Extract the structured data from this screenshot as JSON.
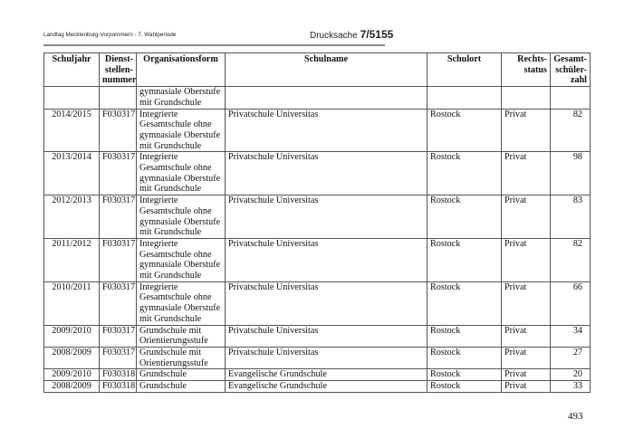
{
  "header": {
    "left": "Landtag Mecklenburg-Vorpommern - 7. Wahlperiode",
    "drucksache_label": "Drucksache",
    "drucksache_number": "7/5155"
  },
  "table": {
    "columns": [
      [
        "Schuljahr"
      ],
      [
        "Dienst-",
        "stellen-",
        "nummer"
      ],
      [
        "Organisationsform"
      ],
      [
        "Schulname"
      ],
      [
        "Schulort"
      ],
      [
        "Rechts-",
        "status"
      ],
      [
        "Gesamt-",
        "schüler-",
        "zahl"
      ]
    ],
    "rows": [
      {
        "schuljahr": "",
        "nummer": "",
        "form": [
          "gymnasiale Oberstufe",
          "mit Grundschule"
        ],
        "name": "",
        "ort": "",
        "status": "",
        "zahl": ""
      },
      {
        "schuljahr": "2014/2015",
        "nummer": "F030317",
        "form": [
          "Integrierte",
          "Gesamtschule ohne",
          "gymnasiale Oberstufe",
          "mit Grundschule"
        ],
        "name": "Privatschule Universitas",
        "ort": "Rostock",
        "status": "Privat",
        "zahl": "82"
      },
      {
        "schuljahr": "2013/2014",
        "nummer": "F030317",
        "form": [
          "Integrierte",
          "Gesamtschule ohne",
          "gymnasiale Oberstufe",
          "mit Grundschule"
        ],
        "name": "Privatschule Universitas",
        "ort": "Rostock",
        "status": "Privat",
        "zahl": "98"
      },
      {
        "schuljahr": "2012/2013",
        "nummer": "F030317",
        "form": [
          "Integrierte",
          "Gesamtschule ohne",
          "gymnasiale Oberstufe",
          "mit Grundschule"
        ],
        "name": "Privatschule Universitas",
        "ort": "Rostock",
        "status": "Privat",
        "zahl": "83"
      },
      {
        "schuljahr": "2011/2012",
        "nummer": "F030317",
        "form": [
          "Integrierte",
          "Gesamtschule ohne",
          "gymnasiale Oberstufe",
          "mit Grundschule"
        ],
        "name": "Privatschule Universitas",
        "ort": "Rostock",
        "status": "Privat",
        "zahl": "82"
      },
      {
        "schuljahr": "2010/2011",
        "nummer": "F030317",
        "form": [
          "Integrierte",
          "Gesamtschule ohne",
          "gymnasiale Oberstufe",
          "mit Grundschule"
        ],
        "name": "Privatschule Universitas",
        "ort": "Rostock",
        "status": "Privat",
        "zahl": "66"
      },
      {
        "schuljahr": "2009/2010",
        "nummer": "F030317",
        "form": [
          "Grundschule mit",
          "Orientierungsstufe"
        ],
        "name": "Privatschule Universitas",
        "ort": "Rostock",
        "status": "Privat",
        "zahl": "34"
      },
      {
        "schuljahr": "2008/2009",
        "nummer": "F030317",
        "form": [
          "Grundschule mit",
          "Orientierungsstufe"
        ],
        "name": "Privatschule Universitas",
        "ort": "Rostock",
        "status": "Privat",
        "zahl": "27"
      },
      {
        "schuljahr": "2009/2010",
        "nummer": "F030318",
        "form": [
          "Grundschule"
        ],
        "name": "Evangelische Grundschule",
        "ort": "Rostock",
        "status": "Privat",
        "zahl": "20"
      },
      {
        "schuljahr": "2008/2009",
        "nummer": "F030318",
        "form": [
          "Grundschule"
        ],
        "name": "Evangelische Grundschule",
        "ort": "Rostock",
        "status": "Privat",
        "zahl": "33"
      }
    ]
  },
  "page_number": "493"
}
